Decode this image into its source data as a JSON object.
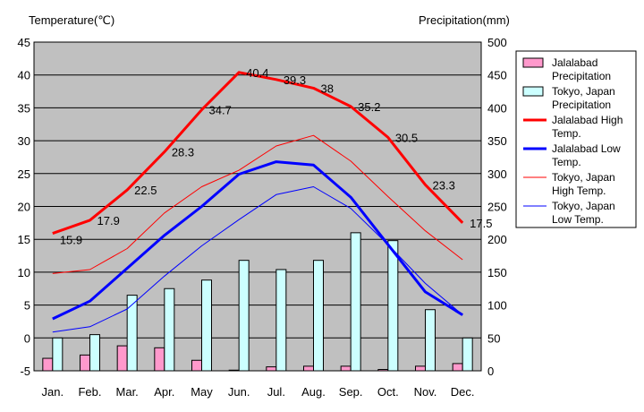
{
  "chart_data": {
    "type": "bar+line",
    "left_axis_title": "Temperature(℃)",
    "right_axis_title": "Precipitation(mm)",
    "categories": [
      "Jan.",
      "Feb.",
      "Mar.",
      "Apr.",
      "May",
      "Jun.",
      "Jul.",
      "Aug.",
      "Sep.",
      "Oct.",
      "Nov.",
      "Dec."
    ],
    "ylim_left": [
      -5,
      45
    ],
    "yticks_left": [
      "-5",
      "0",
      "5",
      "10",
      "15",
      "20",
      "25",
      "30",
      "35",
      "40",
      "45"
    ],
    "ylim_right": [
      0,
      500
    ],
    "yticks_right": [
      "0",
      "50",
      "100",
      "150",
      "200",
      "250",
      "300",
      "350",
      "400",
      "450",
      "500"
    ],
    "grid": "horizontal",
    "legend_position": "right",
    "background": "#c0c0c0",
    "bar_series": [
      {
        "name": "Jalalabad\nPrecipitation",
        "color": "#ff99cc",
        "values": [
          19,
          24,
          38,
          35,
          16,
          1,
          6,
          7,
          7,
          2,
          7,
          11
        ]
      },
      {
        "name": "Tokyo, Japan\nPrecipitation",
        "color": "#ccffff",
        "values": [
          50,
          55,
          115,
          125,
          138,
          168,
          154,
          168,
          210,
          198,
          93,
          50
        ]
      }
    ],
    "line_series": [
      {
        "name": "Jalalabad High\nTemp.",
        "color": "#ff0000",
        "width": 3,
        "values": [
          15.9,
          17.9,
          22.5,
          28.3,
          34.7,
          40.4,
          39.3,
          38,
          35.2,
          30.5,
          23.3,
          17.5
        ],
        "labels": [
          "15.9",
          "17.9",
          "22.5",
          "28.3",
          "34.7",
          "40.4",
          "39.3",
          "38",
          "35.2",
          "30.5",
          "23.3",
          "17.5"
        ]
      },
      {
        "name": "Jalalabad Low\nTemp.",
        "color": "#0000ff",
        "width": 3,
        "values": [
          2.9,
          5.6,
          10.6,
          15.6,
          20.0,
          24.9,
          26.8,
          26.3,
          21.4,
          14.2,
          7.0,
          3.5
        ]
      },
      {
        "name": "Tokyo, Japan\nHigh Temp.",
        "color": "#ff0000",
        "width": 1,
        "values": [
          9.8,
          10.4,
          13.6,
          19.0,
          23.0,
          25.5,
          29.2,
          30.8,
          26.9,
          21.5,
          16.3,
          11.9
        ]
      },
      {
        "name": "Tokyo, Japan\nLow Temp.",
        "color": "#0000ff",
        "width": 1,
        "values": [
          0.9,
          1.7,
          4.4,
          9.4,
          14.0,
          18.0,
          21.8,
          23.0,
          19.7,
          14.2,
          8.3,
          3.5
        ]
      }
    ]
  }
}
